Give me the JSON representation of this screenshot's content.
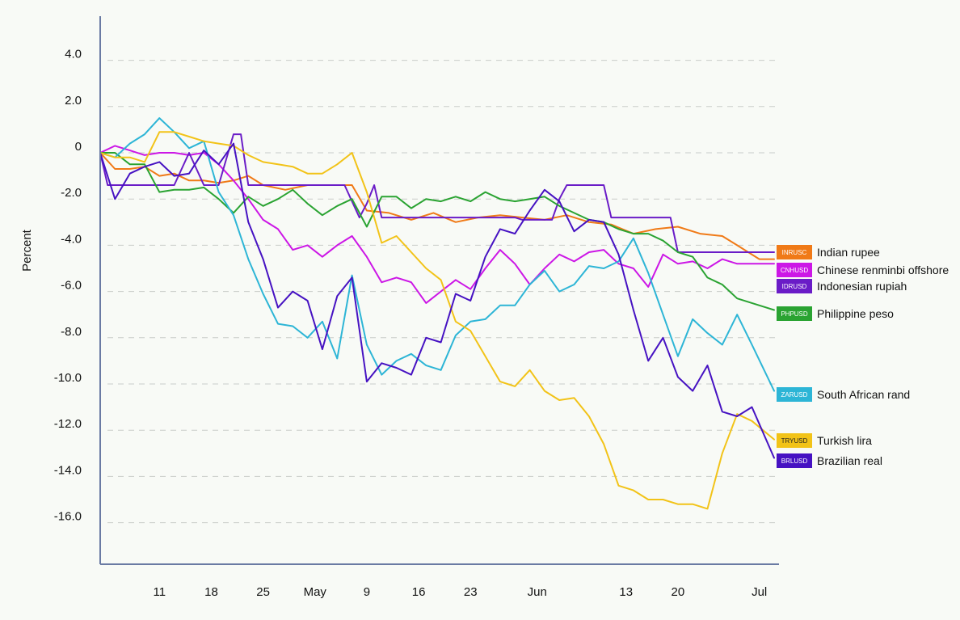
{
  "chart_data": {
    "type": "line",
    "ylabel": "Percent",
    "xlabel": "",
    "ylim": [
      -18.0,
      5.8
    ],
    "y_ticks": [
      4.0,
      2.0,
      0,
      -2.0,
      -4.0,
      -6.0,
      -8.0,
      -10.0,
      -12.0,
      -14.0,
      -16.0
    ],
    "y_tick_labels": [
      "4.0",
      "2.0",
      "0",
      "-2.0",
      "-4.0",
      "-6.0",
      "-8.0",
      "-10.0",
      "-12.0",
      "-14.0",
      "-16.0"
    ],
    "x_range": [
      "2020-04-03",
      "2020-07-03"
    ],
    "x_ticks": [
      {
        "label": "11",
        "date": "2020-04-11"
      },
      {
        "label": "18",
        "date": "2020-04-18"
      },
      {
        "label": "25",
        "date": "2020-04-25"
      },
      {
        "label": "May",
        "date": "2020-05-02"
      },
      {
        "label": "9",
        "date": "2020-05-09"
      },
      {
        "label": "16",
        "date": "2020-05-16"
      },
      {
        "label": "23",
        "date": "2020-05-23"
      },
      {
        "label": "Jun",
        "date": "2020-06-01"
      },
      {
        "label": "13",
        "date": "2020-06-13"
      },
      {
        "label": "20",
        "date": "2020-06-20"
      },
      {
        "label": "Jul",
        "date": "2020-07-01"
      }
    ],
    "grid": true,
    "legend_position": "right",
    "series": [
      {
        "code": "INRUSC",
        "name": "Indian rupee",
        "color": "#f07a17",
        "dates": [
          "2020-04-03",
          "2020-04-05",
          "2020-04-07",
          "2020-04-09",
          "2020-04-11",
          "2020-04-13",
          "2020-04-15",
          "2020-04-17",
          "2020-04-19",
          "2020-04-21",
          "2020-04-23",
          "2020-04-25",
          "2020-04-28",
          "2020-05-01",
          "2020-05-03",
          "2020-05-05",
          "2020-05-07",
          "2020-05-09",
          "2020-05-12",
          "2020-05-15",
          "2020-05-18",
          "2020-05-21",
          "2020-05-24",
          "2020-05-27",
          "2020-05-30",
          "2020-06-02",
          "2020-06-05",
          "2020-06-08",
          "2020-06-11",
          "2020-06-14",
          "2020-06-17",
          "2020-06-20",
          "2020-06-23",
          "2020-06-26",
          "2020-06-28",
          "2020-07-01",
          "2020-07-03"
        ],
        "values": [
          0,
          -0.7,
          -0.7,
          -0.6,
          -1.0,
          -0.9,
          -1.2,
          -1.2,
          -1.3,
          -1.2,
          -1.0,
          -1.4,
          -1.6,
          -1.4,
          -1.4,
          -1.4,
          -1.4,
          -2.5,
          -2.6,
          -2.9,
          -2.6,
          -3.0,
          -2.8,
          -2.7,
          -2.8,
          -2.9,
          -2.7,
          -3.0,
          -3.1,
          -3.5,
          -3.3,
          -3.2,
          -3.5,
          -3.6,
          -4.0,
          -4.6,
          -4.6
        ]
      },
      {
        "code": "CNHUSD",
        "name": "Chinese renminbi offshore",
        "color": "#cc17e6",
        "dates": [
          "2020-04-03",
          "2020-04-05",
          "2020-04-07",
          "2020-04-09",
          "2020-04-11",
          "2020-04-13",
          "2020-04-15",
          "2020-04-17",
          "2020-04-19",
          "2020-04-21",
          "2020-04-23",
          "2020-04-25",
          "2020-04-27",
          "2020-04-29",
          "2020-05-01",
          "2020-05-03",
          "2020-05-05",
          "2020-05-07",
          "2020-05-09",
          "2020-05-11",
          "2020-05-13",
          "2020-05-15",
          "2020-05-17",
          "2020-05-19",
          "2020-05-21",
          "2020-05-23",
          "2020-05-25",
          "2020-05-27",
          "2020-05-29",
          "2020-05-31",
          "2020-06-02",
          "2020-06-04",
          "2020-06-06",
          "2020-06-08",
          "2020-06-10",
          "2020-06-12",
          "2020-06-14",
          "2020-06-16",
          "2020-06-18",
          "2020-06-20",
          "2020-06-22",
          "2020-06-24",
          "2020-06-26",
          "2020-06-28",
          "2020-06-30",
          "2020-07-03"
        ],
        "values": [
          0,
          0.3,
          0.1,
          -0.1,
          0.0,
          0.0,
          -0.1,
          0.0,
          -0.5,
          -1.2,
          -2.0,
          -2.9,
          -3.3,
          -4.2,
          -4.0,
          -4.5,
          -4.0,
          -3.6,
          -4.5,
          -5.6,
          -5.4,
          -5.6,
          -6.5,
          -6.0,
          -5.5,
          -5.9,
          -5.0,
          -4.2,
          -4.8,
          -5.7,
          -5.0,
          -4.4,
          -4.7,
          -4.3,
          -4.2,
          -4.8,
          -5.0,
          -5.8,
          -4.4,
          -4.8,
          -4.7,
          -5.0,
          -4.6,
          -4.8,
          -4.8,
          -4.8
        ]
      },
      {
        "code": "IDRUSD",
        "name": "Indonesian rupiah",
        "color": "#6a1cc7",
        "dates": [
          "2020-04-03",
          "2020-04-04",
          "2020-04-07",
          "2020-04-10",
          "2020-04-11",
          "2020-04-12",
          "2020-04-13",
          "2020-04-15",
          "2020-04-17",
          "2020-04-19",
          "2020-04-21",
          "2020-04-22",
          "2020-04-23",
          "2020-04-24",
          "2020-04-27",
          "2020-04-30",
          "2020-05-03",
          "2020-05-06",
          "2020-05-08",
          "2020-05-09",
          "2020-05-10",
          "2020-05-11",
          "2020-05-12",
          "2020-05-15",
          "2020-05-18",
          "2020-05-22",
          "2020-05-25",
          "2020-05-28",
          "2020-05-29",
          "2020-05-30",
          "2020-06-01",
          "2020-06-03",
          "2020-06-04",
          "2020-06-05",
          "2020-06-06",
          "2020-06-07",
          "2020-06-08",
          "2020-06-09",
          "2020-06-10",
          "2020-06-11",
          "2020-06-14",
          "2020-06-17",
          "2020-06-19",
          "2020-06-20",
          "2020-06-23",
          "2020-06-26",
          "2020-06-29",
          "2020-07-01",
          "2020-07-03"
        ],
        "values": [
          0,
          -1.4,
          -1.4,
          -1.4,
          -1.4,
          -1.4,
          -1.4,
          0.0,
          -1.4,
          -1.4,
          0.8,
          0.8,
          -1.4,
          -1.4,
          -1.4,
          -1.4,
          -1.4,
          -1.4,
          -2.8,
          -2.2,
          -1.4,
          -2.8,
          -2.8,
          -2.8,
          -2.8,
          -2.8,
          -2.8,
          -2.8,
          -2.8,
          -2.9,
          -2.9,
          -2.9,
          -2.0,
          -1.4,
          -1.4,
          -1.4,
          -1.4,
          -1.4,
          -1.4,
          -2.8,
          -2.8,
          -2.8,
          -2.8,
          -4.3,
          -4.3,
          -4.3,
          -4.3,
          -4.3,
          -4.3
        ]
      },
      {
        "code": "PHPUSD",
        "name": "Philippine peso",
        "color": "#2aa332",
        "dates": [
          "2020-04-03",
          "2020-04-05",
          "2020-04-07",
          "2020-04-09",
          "2020-04-11",
          "2020-04-13",
          "2020-04-15",
          "2020-04-17",
          "2020-04-19",
          "2020-04-21",
          "2020-04-23",
          "2020-04-25",
          "2020-04-27",
          "2020-04-29",
          "2020-05-01",
          "2020-05-03",
          "2020-05-05",
          "2020-05-07",
          "2020-05-09",
          "2020-05-11",
          "2020-05-13",
          "2020-05-15",
          "2020-05-17",
          "2020-05-19",
          "2020-05-21",
          "2020-05-23",
          "2020-05-25",
          "2020-05-27",
          "2020-05-29",
          "2020-05-31",
          "2020-06-02",
          "2020-06-04",
          "2020-06-06",
          "2020-06-08",
          "2020-06-10",
          "2020-06-12",
          "2020-06-14",
          "2020-06-16",
          "2020-06-18",
          "2020-06-20",
          "2020-06-22",
          "2020-06-24",
          "2020-06-26",
          "2020-06-28",
          "2020-06-30",
          "2020-07-03"
        ],
        "values": [
          0,
          0.0,
          -0.5,
          -0.5,
          -1.7,
          -1.6,
          -1.6,
          -1.5,
          -2.0,
          -2.6,
          -1.9,
          -2.3,
          -2.0,
          -1.6,
          -2.2,
          -2.7,
          -2.3,
          -2.0,
          -3.2,
          -1.9,
          -1.9,
          -2.4,
          -2.0,
          -2.1,
          -1.9,
          -2.1,
          -1.7,
          -2.0,
          -2.1,
          -2.0,
          -1.9,
          -2.3,
          -2.6,
          -2.9,
          -3.0,
          -3.3,
          -3.5,
          -3.5,
          -3.8,
          -4.3,
          -4.5,
          -5.4,
          -5.7,
          -6.3,
          -6.5,
          -6.8
        ]
      },
      {
        "code": "ZARUSD",
        "name": "South African rand",
        "color": "#2db5d6",
        "dates": [
          "2020-04-03",
          "2020-04-05",
          "2020-04-07",
          "2020-04-09",
          "2020-04-11",
          "2020-04-13",
          "2020-04-15",
          "2020-04-17",
          "2020-04-19",
          "2020-04-21",
          "2020-04-23",
          "2020-04-25",
          "2020-04-27",
          "2020-04-29",
          "2020-05-01",
          "2020-05-03",
          "2020-05-05",
          "2020-05-07",
          "2020-05-09",
          "2020-05-11",
          "2020-05-13",
          "2020-05-15",
          "2020-05-17",
          "2020-05-19",
          "2020-05-21",
          "2020-05-23",
          "2020-05-25",
          "2020-05-27",
          "2020-05-29",
          "2020-05-31",
          "2020-06-02",
          "2020-06-04",
          "2020-06-06",
          "2020-06-08",
          "2020-06-10",
          "2020-06-12",
          "2020-06-14",
          "2020-06-16",
          "2020-06-18",
          "2020-06-20",
          "2020-06-22",
          "2020-06-24",
          "2020-06-26",
          "2020-06-28",
          "2020-06-30",
          "2020-07-03"
        ],
        "values": [
          0,
          -0.2,
          0.4,
          0.8,
          1.5,
          0.9,
          0.2,
          0.5,
          -1.7,
          -2.7,
          -4.6,
          -6.1,
          -7.4,
          -7.5,
          -8.0,
          -7.3,
          -8.9,
          -5.3,
          -8.3,
          -9.6,
          -9.0,
          -8.7,
          -9.2,
          -9.4,
          -7.9,
          -7.3,
          -7.2,
          -6.6,
          -6.6,
          -5.7,
          -5.1,
          -6.0,
          -5.7,
          -4.9,
          -5.0,
          -4.7,
          -3.7,
          -5.2,
          -7.0,
          -8.8,
          -7.2,
          -7.8,
          -8.3,
          -7.0,
          -8.3,
          -10.3
        ]
      },
      {
        "code": "TRYUSD",
        "name": "Turkish lira",
        "color": "#f2c318",
        "dates": [
          "2020-04-03",
          "2020-04-05",
          "2020-04-07",
          "2020-04-09",
          "2020-04-11",
          "2020-04-13",
          "2020-04-15",
          "2020-04-17",
          "2020-04-19",
          "2020-04-21",
          "2020-04-23",
          "2020-04-25",
          "2020-04-27",
          "2020-04-29",
          "2020-05-01",
          "2020-05-03",
          "2020-05-05",
          "2020-05-07",
          "2020-05-09",
          "2020-05-11",
          "2020-05-13",
          "2020-05-15",
          "2020-05-17",
          "2020-05-19",
          "2020-05-21",
          "2020-05-23",
          "2020-05-25",
          "2020-05-27",
          "2020-05-29",
          "2020-05-31",
          "2020-06-02",
          "2020-06-04",
          "2020-06-06",
          "2020-06-08",
          "2020-06-10",
          "2020-06-12",
          "2020-06-14",
          "2020-06-16",
          "2020-06-18",
          "2020-06-20",
          "2020-06-22",
          "2020-06-24",
          "2020-06-26",
          "2020-06-28",
          "2020-06-30",
          "2020-07-03"
        ],
        "values": [
          0,
          -0.2,
          -0.2,
          -0.4,
          0.9,
          0.9,
          0.7,
          0.5,
          0.4,
          0.3,
          -0.1,
          -0.4,
          -0.5,
          -0.6,
          -0.9,
          -0.9,
          -0.5,
          0.0,
          -1.7,
          -3.9,
          -3.6,
          -4.3,
          -5.0,
          -5.5,
          -7.3,
          -7.7,
          -8.8,
          -9.9,
          -10.1,
          -9.4,
          -10.3,
          -10.7,
          -10.6,
          -11.4,
          -12.6,
          -14.4,
          -14.6,
          -15.0,
          -15.0,
          -15.2,
          -15.2,
          -15.4,
          -13.0,
          -11.3,
          -11.6,
          -12.4
        ]
      },
      {
        "code": "BRLUSD",
        "name": "Brazilian real",
        "color": "#4612c2",
        "dates": [
          "2020-04-03",
          "2020-04-05",
          "2020-04-07",
          "2020-04-09",
          "2020-04-11",
          "2020-04-13",
          "2020-04-15",
          "2020-04-17",
          "2020-04-19",
          "2020-04-21",
          "2020-04-23",
          "2020-04-25",
          "2020-04-27",
          "2020-04-29",
          "2020-05-01",
          "2020-05-03",
          "2020-05-05",
          "2020-05-07",
          "2020-05-09",
          "2020-05-11",
          "2020-05-13",
          "2020-05-15",
          "2020-05-17",
          "2020-05-19",
          "2020-05-21",
          "2020-05-23",
          "2020-05-25",
          "2020-05-27",
          "2020-05-29",
          "2020-05-31",
          "2020-06-02",
          "2020-06-04",
          "2020-06-06",
          "2020-06-08",
          "2020-06-10",
          "2020-06-12",
          "2020-06-14",
          "2020-06-16",
          "2020-06-18",
          "2020-06-20",
          "2020-06-22",
          "2020-06-24",
          "2020-06-26",
          "2020-06-28",
          "2020-06-30",
          "2020-07-03"
        ],
        "values": [
          0,
          -2.0,
          -0.9,
          -0.6,
          -0.4,
          -1.0,
          -0.9,
          0.1,
          -0.5,
          0.4,
          -3.0,
          -4.6,
          -6.7,
          -6.0,
          -6.4,
          -8.5,
          -6.2,
          -5.4,
          -9.9,
          -9.1,
          -9.3,
          -9.6,
          -8.0,
          -8.2,
          -6.1,
          -6.4,
          -4.5,
          -3.3,
          -3.5,
          -2.5,
          -1.6,
          -2.1,
          -3.4,
          -2.9,
          -3.0,
          -4.4,
          -6.8,
          -9.0,
          -8.0,
          -9.7,
          -10.3,
          -9.2,
          -11.2,
          -11.4,
          -11.0,
          -13.2
        ]
      }
    ]
  }
}
